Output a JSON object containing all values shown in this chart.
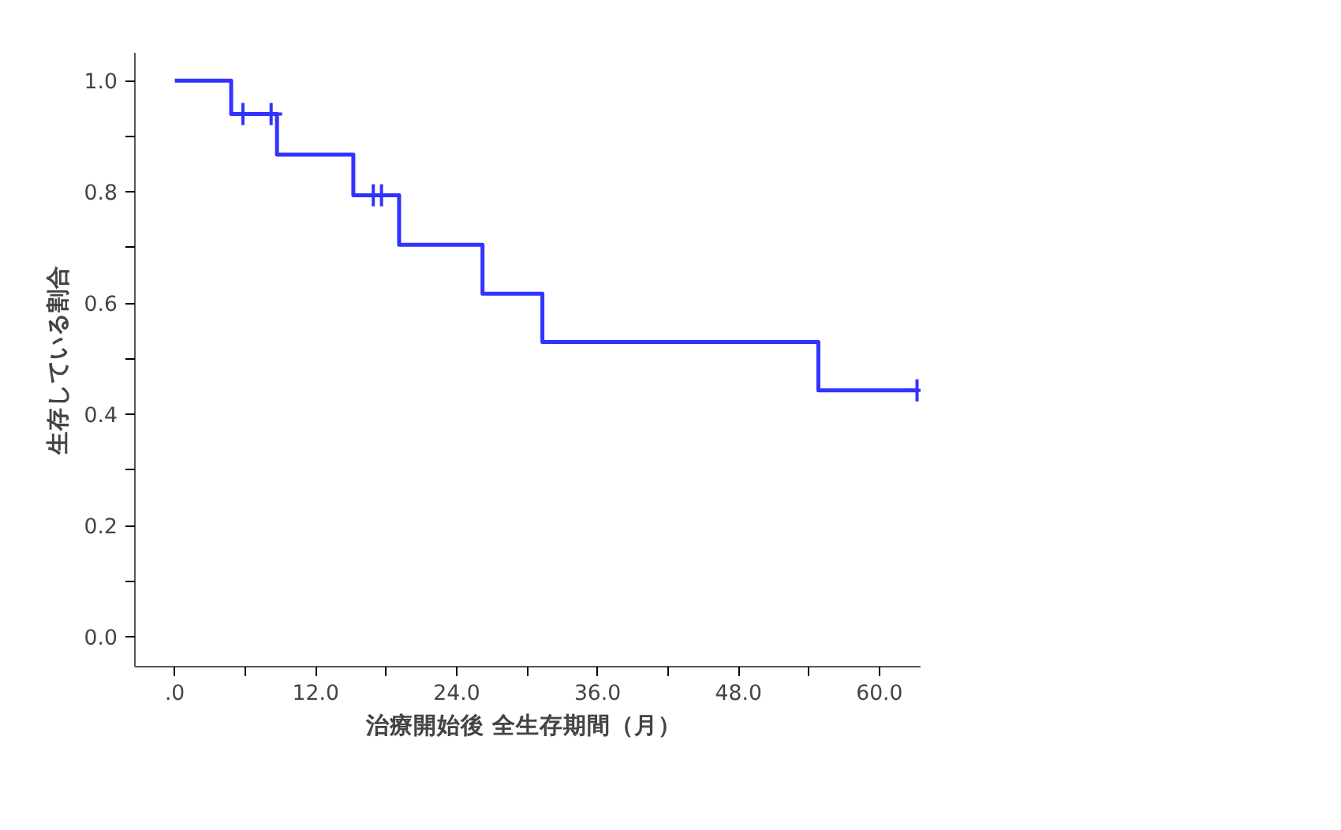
{
  "chart_data": {
    "type": "step",
    "xlabel": "治療開始後  全生存期間（月）",
    "ylabel": "生存している割合",
    "series": [
      {
        "color": "#3333ff",
        "x": [
          0,
          4.8,
          8.7,
          15.2,
          19.1,
          26.2,
          31.3,
          54.8,
          63.2
        ],
        "values": [
          1.0,
          0.94,
          0.867,
          0.794,
          0.705,
          0.617,
          0.53,
          0.443,
          0.443
        ]
      },
      {
        "type": "scatter",
        "color": "#3333ff",
        "marker": "cross",
        "x": [
          5.8,
          8.2,
          16.9,
          17.6,
          63.2
        ],
        "values": [
          0.94,
          0.94,
          0.794,
          0.794,
          0.443
        ]
      }
    ],
    "xlim": [
      -3.4,
      63.5
    ],
    "ylim": [
      -0.054,
      1.05
    ],
    "xticks": [
      {
        "value": 0,
        "label": ".0"
      },
      {
        "value": 6,
        "label": null
      },
      {
        "value": 12,
        "label": "12.0"
      },
      {
        "value": 18,
        "label": null
      },
      {
        "value": 24,
        "label": "24.0"
      },
      {
        "value": 30,
        "label": null
      },
      {
        "value": 36,
        "label": "36.0"
      },
      {
        "value": 42,
        "label": null
      },
      {
        "value": 48,
        "label": "48.0"
      },
      {
        "value": 54,
        "label": null
      },
      {
        "value": 60,
        "label": "60.0"
      }
    ],
    "yticks": [
      {
        "value": 0,
        "label": "0.0"
      },
      {
        "value": 0.1,
        "label": null
      },
      {
        "value": 0.2,
        "label": "0.2"
      },
      {
        "value": 0.3,
        "label": null
      },
      {
        "value": 0.4,
        "label": "0.4"
      },
      {
        "value": 0.5,
        "label": null
      },
      {
        "value": 0.6,
        "label": "0.6"
      },
      {
        "value": 0.7,
        "label": null
      },
      {
        "value": 0.8,
        "label": "0.8"
      },
      {
        "value": 0.9,
        "label": null
      },
      {
        "value": 1.0,
        "label": "1.0"
      }
    ],
    "grid": false
  }
}
